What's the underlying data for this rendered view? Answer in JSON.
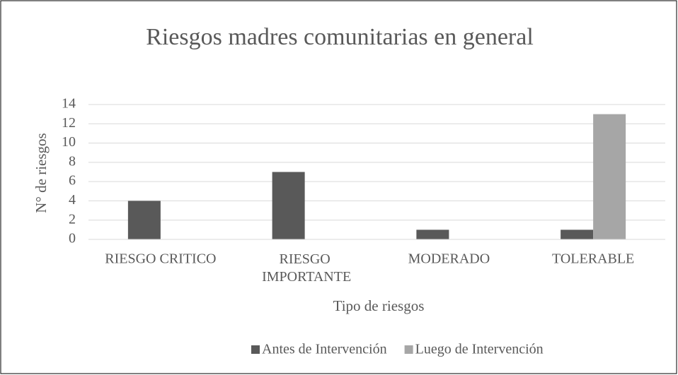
{
  "chart_data": {
    "type": "bar",
    "title": "Riesgos madres comunitarias en general",
    "x_label": "Tipo de riesgos",
    "y_label": "N° de riesgos",
    "categories": [
      "RIESGO CRITICO",
      "RIESGO IMPORTANTE",
      "MODERADO",
      "TOLERABLE"
    ],
    "series": [
      {
        "name": "Antes de Intervención",
        "color": "#595959",
        "values": [
          4,
          7,
          1,
          1
        ]
      },
      {
        "name": "Luego de Intervención",
        "color": "#a6a6a6",
        "values": [
          0,
          0,
          0,
          13
        ]
      }
    ],
    "ylim": [
      0,
      14
    ],
    "yticks": [
      0,
      2,
      4,
      6,
      8,
      10,
      12,
      14
    ],
    "grid": true,
    "legend": "bottom"
  }
}
